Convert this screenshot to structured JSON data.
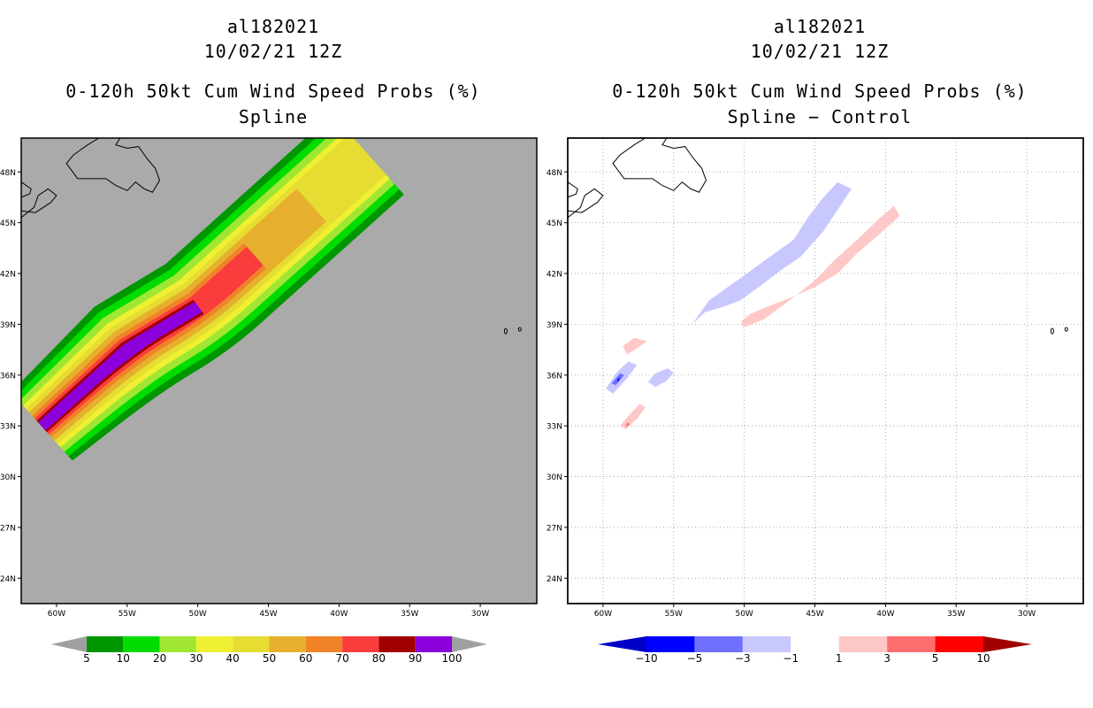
{
  "panels": [
    {
      "id": "left",
      "storm_id": "al182021",
      "datetime": "10/02/21 12Z",
      "title": "0-120h 50kt Cum Wind Speed Probs (%)",
      "subtitle": "Spline",
      "background_color": "#aaaaaa",
      "colorbar": {
        "labels": [
          "5",
          "10",
          "20",
          "30",
          "40",
          "50",
          "60",
          "70",
          "80",
          "90",
          "100"
        ],
        "colors": [
          "#009600",
          "#00dc00",
          "#a0e632",
          "#f0f032",
          "#e6dc32",
          "#e6af2d",
          "#f08228",
          "#fa3c3c",
          "#a00000",
          "#8c00dc"
        ],
        "end_color": "#a0a0a0"
      }
    },
    {
      "id": "right",
      "storm_id": "al182021",
      "datetime": "10/02/21 12Z",
      "title": "0-120h 50kt Cum Wind Speed Probs (%)",
      "subtitle": "Spline − Control",
      "background_color": "#ffffff",
      "colorbar": {
        "labels": [
          "−10",
          "−5",
          "−3",
          "−1",
          "1",
          "3",
          "5",
          "10"
        ],
        "colors": [
          "#0000c8",
          "#0000ff",
          "#6e6eff",
          "#c8c8ff",
          "#ffffff",
          "#ffc8c8",
          "#ff6e6e",
          "#ff0000",
          "#a00000"
        ]
      }
    }
  ],
  "axes": {
    "lat_labels": [
      "48N",
      "45N",
      "42N",
      "39N",
      "36N",
      "33N",
      "30N",
      "27N",
      "24N"
    ],
    "lon_labels": [
      "60W",
      "55W",
      "50W",
      "45W",
      "40W",
      "35W",
      "30W"
    ]
  },
  "chart_data": [
    {
      "type": "heatmap",
      "title": "0-120h 50kt Cum Wind Speed Probs (%) Spline",
      "variable": "50kt cumulative wind speed probability (%)",
      "lat_range": [
        22.5,
        50.0
      ],
      "lon_range": [
        -62.5,
        -26.0
      ],
      "contour_levels": [
        5,
        10,
        20,
        30,
        40,
        50,
        60,
        70,
        80,
        90,
        100
      ],
      "track_axis": [
        [
          -61,
          33
        ],
        [
          -55,
          37.5
        ],
        [
          -50,
          40
        ],
        [
          -46,
          43
        ],
        [
          -42,
          46
        ],
        [
          -38,
          49
        ]
      ]
    },
    {
      "type": "heatmap",
      "title": "0-120h 50kt Cum Wind Speed Probs (%) Spline − Control",
      "variable": "probability difference (%)",
      "lat_range": [
        22.5,
        50.0
      ],
      "lon_range": [
        -62.5,
        -26.0
      ],
      "contour_levels": [
        -10,
        -5,
        -3,
        -1,
        1,
        3,
        5,
        10
      ]
    }
  ]
}
